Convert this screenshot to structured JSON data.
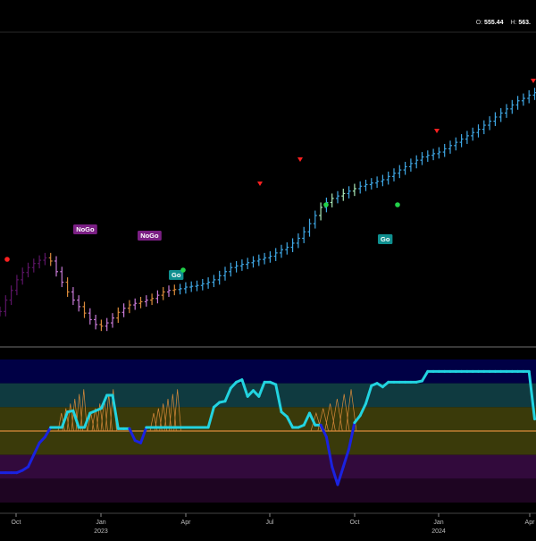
{
  "ohlc": {
    "open_label": "O:",
    "open_value": "555.44",
    "high_label": "H:",
    "high_value": "563."
  },
  "labels": {
    "nogo": "NoGo",
    "go": "Go"
  },
  "colors": {
    "background": "#000000",
    "deep_purple": "#5c1566",
    "light_purple": "#c77ad6",
    "orange": "#d98a3a",
    "light_blue": "#3fa7e4",
    "pale_green": "#a9e8b8",
    "bearish_marker": "#ff2020",
    "bullish_dot": "#22d24a",
    "oscillator_cyan": "#22d3e0",
    "oscillator_blue": "#1a22e0",
    "zero_line": "#d98a3a"
  },
  "x_axis": {
    "months": [
      "Oct",
      "Jan",
      "Apr",
      "Jul",
      "Oct",
      "Jan",
      "Apr"
    ],
    "years": [
      "2023",
      "2024"
    ]
  },
  "chart_data": {
    "type": "ohlc",
    "weekly_closes": [
      286,
      300,
      312,
      325,
      334,
      340,
      345,
      349,
      352,
      348,
      335,
      322,
      310,
      300,
      292,
      284,
      276,
      270,
      268,
      272,
      278,
      285,
      290,
      294,
      296,
      298,
      300,
      302,
      306,
      310,
      312,
      313,
      314,
      316,
      317,
      318,
      320,
      322,
      325,
      330,
      335,
      340,
      342,
      344,
      346,
      348,
      350,
      352,
      354,
      358,
      362,
      365,
      370,
      376,
      384,
      394,
      404,
      414,
      420,
      425,
      428,
      431,
      434,
      437,
      440,
      442,
      444,
      446,
      448,
      452,
      456,
      460,
      464,
      468,
      472,
      476,
      478,
      480,
      482,
      486,
      490,
      494,
      498,
      502,
      506,
      510,
      515,
      520,
      525,
      530,
      535,
      540,
      545,
      548,
      552,
      555
    ],
    "oscillator": [
      -3.5,
      -3.5,
      -3.5,
      -3.5,
      -3.3,
      -3,
      -2,
      -1,
      -0.5,
      0.3,
      0.3,
      0.3,
      1.6,
      1.7,
      0.3,
      0.3,
      1.5,
      1.7,
      1.9,
      3,
      3,
      0.2,
      0.2,
      0.2,
      -0.8,
      -1,
      0.3,
      0.3,
      0.3,
      0.3,
      0.3,
      0.3,
      0.3,
      0.3,
      0.3,
      0.3,
      0.3,
      0.3,
      2,
      2.4,
      2.5,
      3.6,
      4.1,
      4.3,
      2.9,
      3.4,
      2.9,
      4.1,
      4.1,
      3.9,
      1.6,
      1.2,
      0.3,
      0.3,
      0.5,
      1.5,
      0.5,
      0.5,
      -0.5,
      -3,
      -4.5,
      -3,
      -1.5,
      0.7,
      1.3,
      2.3,
      3.8,
      4,
      3.7,
      4.1,
      4.1,
      4.1,
      4.1,
      4.1,
      4.1,
      4.2,
      5,
      5,
      5,
      5,
      5,
      5,
      5,
      5,
      5,
      5,
      5,
      5,
      5,
      5,
      5,
      5,
      5,
      5,
      5,
      1
    ],
    "oscillator_bands": [
      5,
      3,
      1,
      -1,
      -3,
      -5
    ],
    "oscillator_zero": 0
  }
}
